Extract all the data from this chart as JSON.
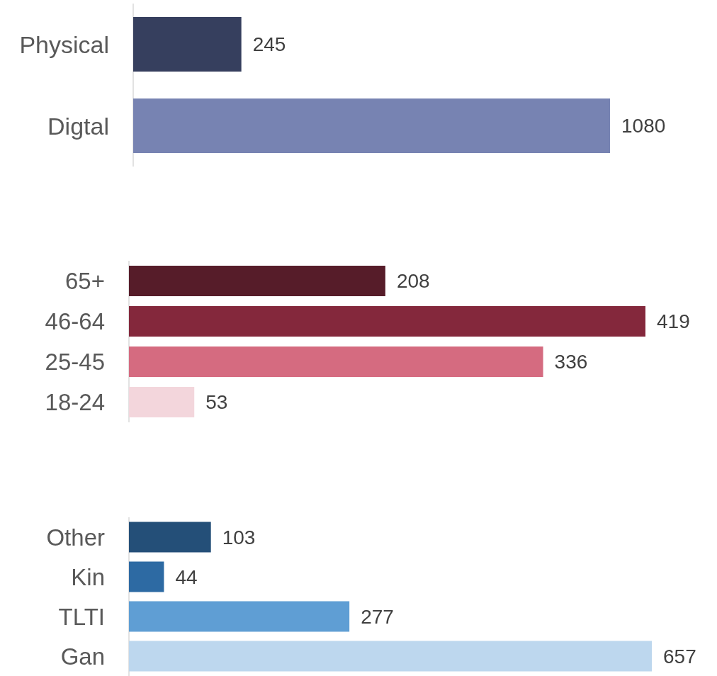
{
  "chart_data": [
    {
      "type": "bar",
      "orientation": "horizontal",
      "categories": [
        "Physical",
        "Digtal"
      ],
      "values": [
        245,
        1080
      ],
      "colors": [
        "#363f5e",
        "#7783b2"
      ],
      "data_labels": true
    },
    {
      "type": "bar",
      "orientation": "horizontal",
      "categories": [
        "65+",
        "46-64",
        "25-45",
        "18-24"
      ],
      "values": [
        208,
        419,
        336,
        53
      ],
      "colors": [
        "#561c29",
        "#84283c",
        "#d56b80",
        "#f3d6dc"
      ],
      "data_labels": true
    },
    {
      "type": "bar",
      "orientation": "horizontal",
      "categories": [
        "Other",
        "Kin",
        "TLTI",
        "Gan"
      ],
      "values": [
        103,
        44,
        277,
        657
      ],
      "colors": [
        "#244f78",
        "#2d6aa3",
        "#5f9ed4",
        "#bdd7ee"
      ],
      "data_labels": true
    }
  ]
}
